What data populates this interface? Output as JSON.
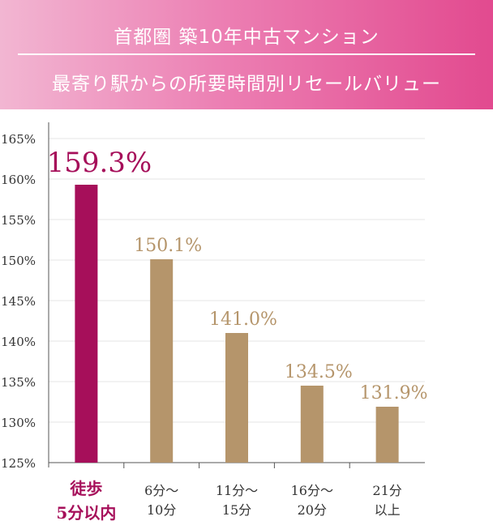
{
  "header": {
    "title_line1": "首都圏 築10年中古マンション",
    "title_line2": "最寄り駅からの所要時間別リセールバリュー"
  },
  "colors": {
    "highlight_bar": "#a60f5a",
    "normal_bar": "#b5956b",
    "highlight_label": "#a60f5a",
    "normal_label": "#b5956b"
  },
  "chart_data": {
    "type": "bar",
    "title": "",
    "xlabel": "",
    "ylabel": "",
    "ylim": [
      125,
      165
    ],
    "yticks": [
      125,
      130,
      135,
      140,
      145,
      150,
      155,
      160,
      165
    ],
    "ytick_labels": [
      "125%",
      "130%",
      "135%",
      "140%",
      "145%",
      "150%",
      "155%",
      "160%",
      "165%"
    ],
    "grid": true,
    "categories": [
      [
        "徒歩",
        "5分以内"
      ],
      [
        "6分～",
        "10分"
      ],
      [
        "11分～",
        "15分"
      ],
      [
        "16分～",
        "20分"
      ],
      [
        "21分",
        "以上"
      ]
    ],
    "values": [
      159.3,
      150.1,
      141.0,
      134.5,
      131.9
    ],
    "value_labels": [
      "159.3%",
      "150.1%",
      "141.0%",
      "134.5%",
      "131.9%"
    ],
    "highlight_index": 0
  }
}
